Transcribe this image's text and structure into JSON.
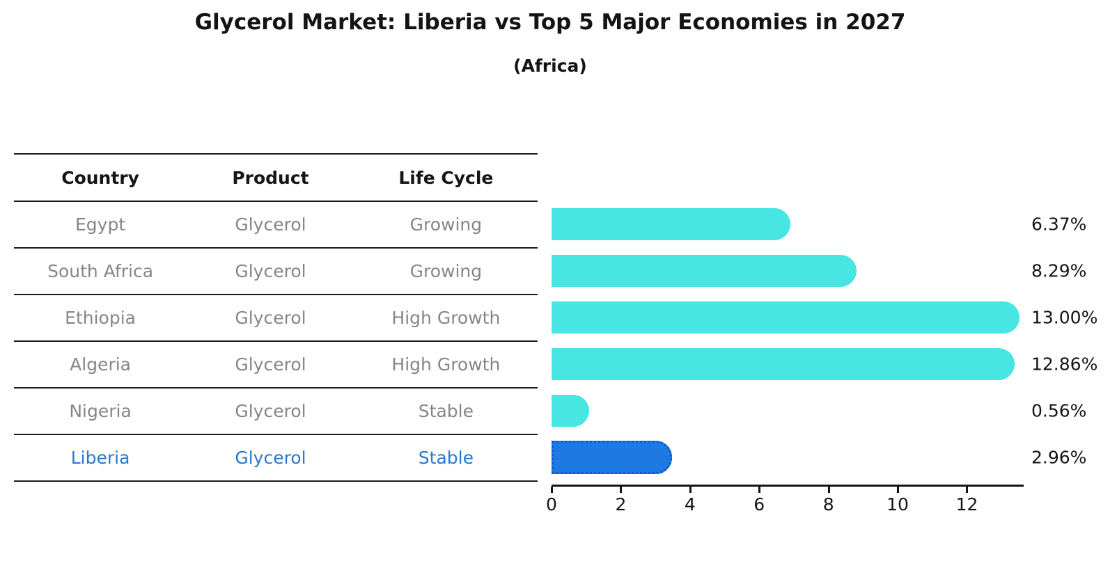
{
  "header": {
    "title": "Glycerol Market: Liberia vs Top 5 Major Economies in 2027",
    "subtitle": "(Africa)"
  },
  "table": {
    "columns": [
      "Country",
      "Product",
      "Life Cycle"
    ],
    "rows": [
      {
        "country": "Egypt",
        "product": "Glycerol",
        "life_cycle": "Growing",
        "highlight": false
      },
      {
        "country": "South Africa",
        "product": "Glycerol",
        "life_cycle": "Growing",
        "highlight": false
      },
      {
        "country": "Ethiopia",
        "product": "Glycerol",
        "life_cycle": "High Growth",
        "highlight": false
      },
      {
        "country": "Algeria",
        "product": "Glycerol",
        "life_cycle": "High Growth",
        "highlight": false
      },
      {
        "country": "Nigeria",
        "product": "Glycerol",
        "life_cycle": "Stable",
        "highlight": false
      },
      {
        "country": "Liberia",
        "product": "Glycerol",
        "life_cycle": "Stable",
        "highlight": true
      }
    ]
  },
  "chart_data": {
    "type": "bar",
    "orientation": "horizontal",
    "title": "Glycerol Market: Liberia vs Top 5 Major Economies in 2027",
    "subtitle": "(Africa)",
    "categories": [
      "Egypt",
      "South Africa",
      "Ethiopia",
      "Algeria",
      "Nigeria",
      "Liberia"
    ],
    "values": [
      6.37,
      8.29,
      13.0,
      12.86,
      0.56,
      2.96
    ],
    "value_labels": [
      "6.37%",
      "8.29%",
      "13.00%",
      "12.86%",
      "0.56%",
      "2.96%"
    ],
    "highlight_index": 5,
    "x_ticks": [
      0,
      2,
      4,
      6,
      8,
      10,
      12
    ],
    "xlim": [
      0,
      13.64
    ],
    "grid": false,
    "legend": "none",
    "colors": {
      "bar": "#47e6e2",
      "highlight_bar": "#1e7ae2",
      "highlight_border": "#0b5ecf",
      "row_text": "#868686",
      "highlight_text": "#2979d0",
      "axis_text": "#151515"
    }
  }
}
